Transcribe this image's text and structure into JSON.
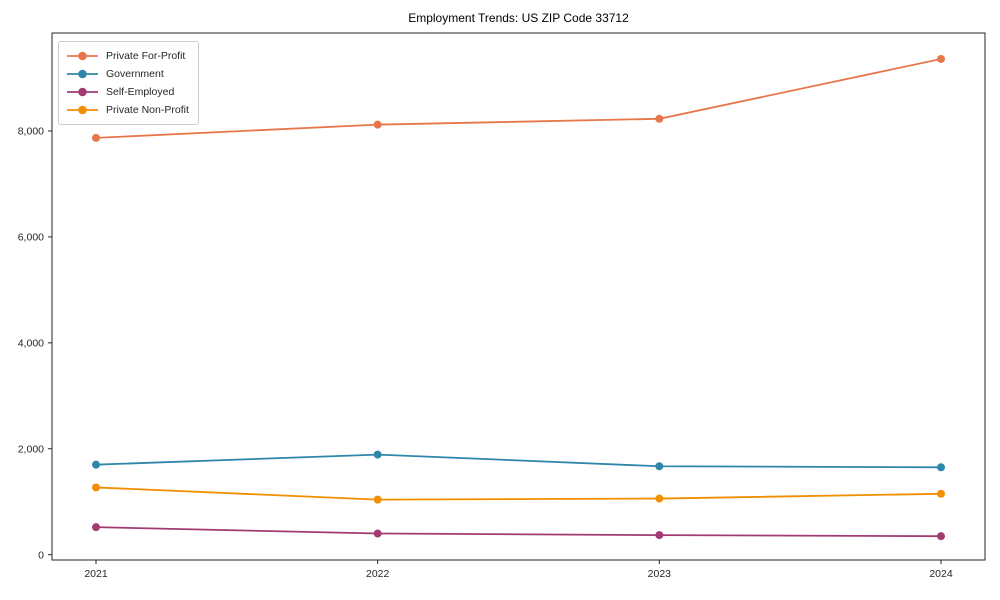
{
  "chart_data": {
    "type": "line",
    "title": "Employment Trends: US ZIP Code 33712",
    "categories": [
      "2021",
      "2022",
      "2023",
      "2024"
    ],
    "series": [
      {
        "name": "Private For-Profit",
        "color": "#E8764B",
        "values": [
          7870,
          8120,
          8230,
          9360
        ]
      },
      {
        "name": "Government",
        "color": "#2E86AB",
        "values": [
          1700,
          1890,
          1670,
          1650
        ]
      },
      {
        "name": "Self-Employed",
        "color": "#A23B72",
        "values": [
          520,
          400,
          370,
          350
        ]
      },
      {
        "name": "Private Non-Profit",
        "color": "#F18F01",
        "values": [
          1270,
          1040,
          1060,
          1150
        ]
      }
    ],
    "xlabel": "",
    "ylabel": "",
    "ylim": [
      -100,
      9850
    ],
    "yticks": [
      0,
      2000,
      4000,
      6000,
      8000
    ],
    "ytick_labels": [
      "0",
      "2,000",
      "4,000",
      "6,000",
      "8,000"
    ],
    "grid": "off",
    "legend_position": "upper-left",
    "marker": "circle",
    "spine_color": "#262626"
  }
}
